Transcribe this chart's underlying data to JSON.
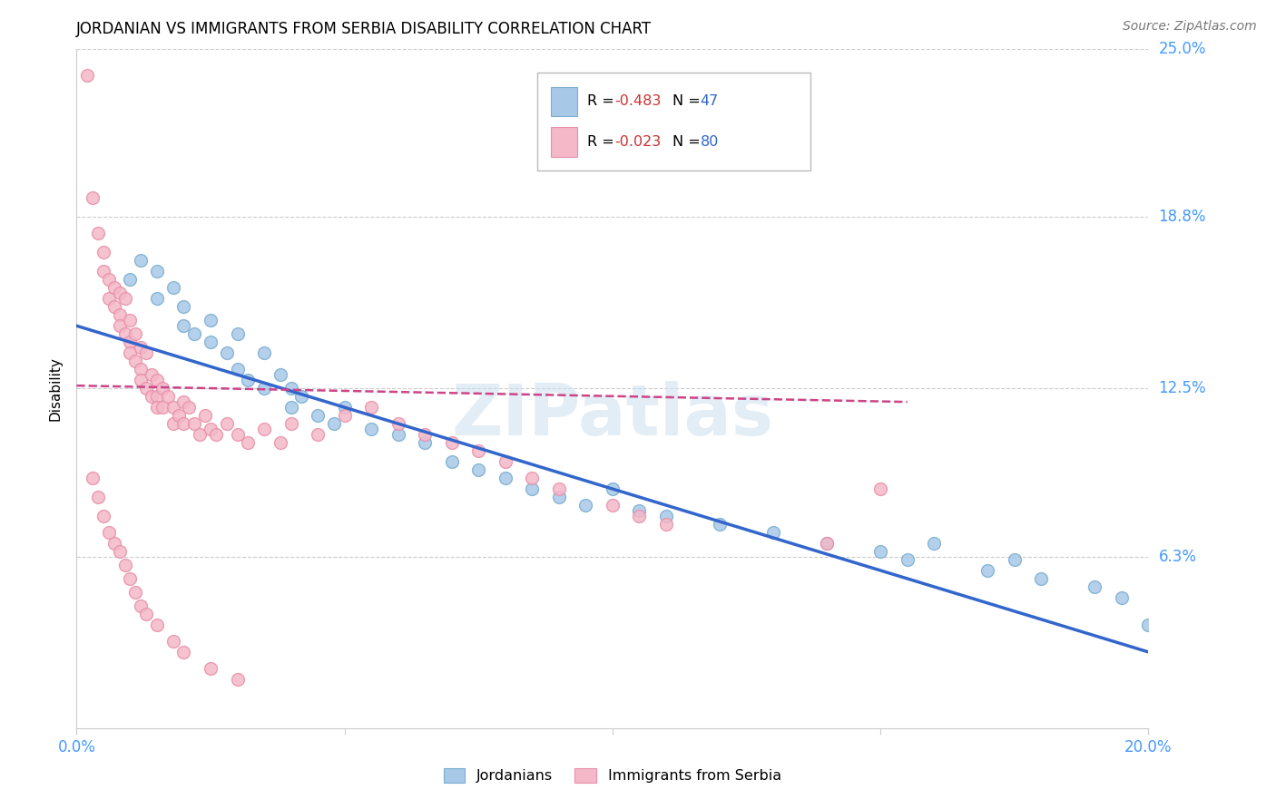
{
  "title": "JORDANIAN VS IMMIGRANTS FROM SERBIA DISABILITY CORRELATION CHART",
  "source": "Source: ZipAtlas.com",
  "ylabel_label": "Disability",
  "xlim": [
    0.0,
    0.2
  ],
  "ylim": [
    0.0,
    0.25
  ],
  "xtick_positions": [
    0.0,
    0.05,
    0.1,
    0.15,
    0.2
  ],
  "xtick_labels": [
    "0.0%",
    "",
    "",
    "",
    "20.0%"
  ],
  "ytick_values_right": [
    0.25,
    0.188,
    0.125,
    0.063
  ],
  "ytick_labels_right": [
    "25.0%",
    "18.8%",
    "12.5%",
    "6.3%"
  ],
  "blue_color": "#a8c8e8",
  "pink_color": "#f4b8c8",
  "blue_edge_color": "#7aaed0",
  "pink_edge_color": "#e890a8",
  "blue_line_color": "#3366cc",
  "pink_line_color": "#cc4488",
  "blue_trendline_x": [
    0.0,
    0.2
  ],
  "blue_trendline_y": [
    0.148,
    0.028
  ],
  "pink_trendline_x": [
    0.0,
    0.155
  ],
  "pink_trendline_y": [
    0.126,
    0.12
  ],
  "jordanians_x": [
    0.01,
    0.012,
    0.015,
    0.015,
    0.018,
    0.02,
    0.02,
    0.022,
    0.025,
    0.025,
    0.028,
    0.03,
    0.03,
    0.032,
    0.035,
    0.035,
    0.038,
    0.04,
    0.04,
    0.042,
    0.045,
    0.048,
    0.05,
    0.055,
    0.06,
    0.065,
    0.07,
    0.075,
    0.08,
    0.085,
    0.09,
    0.095,
    0.1,
    0.105,
    0.11,
    0.12,
    0.13,
    0.14,
    0.15,
    0.155,
    0.16,
    0.17,
    0.175,
    0.18,
    0.19,
    0.195,
    0.2
  ],
  "jordanians_y": [
    0.165,
    0.172,
    0.168,
    0.158,
    0.162,
    0.155,
    0.148,
    0.145,
    0.15,
    0.142,
    0.138,
    0.145,
    0.132,
    0.128,
    0.138,
    0.125,
    0.13,
    0.125,
    0.118,
    0.122,
    0.115,
    0.112,
    0.118,
    0.11,
    0.108,
    0.105,
    0.098,
    0.095,
    0.092,
    0.088,
    0.085,
    0.082,
    0.088,
    0.08,
    0.078,
    0.075,
    0.072,
    0.068,
    0.065,
    0.062,
    0.068,
    0.058,
    0.062,
    0.055,
    0.052,
    0.048,
    0.038
  ],
  "serbia_x": [
    0.002,
    0.003,
    0.004,
    0.005,
    0.005,
    0.006,
    0.006,
    0.007,
    0.007,
    0.008,
    0.008,
    0.008,
    0.009,
    0.009,
    0.01,
    0.01,
    0.01,
    0.011,
    0.011,
    0.012,
    0.012,
    0.012,
    0.013,
    0.013,
    0.014,
    0.014,
    0.015,
    0.015,
    0.015,
    0.016,
    0.016,
    0.017,
    0.018,
    0.018,
    0.019,
    0.02,
    0.02,
    0.021,
    0.022,
    0.023,
    0.024,
    0.025,
    0.026,
    0.028,
    0.03,
    0.032,
    0.035,
    0.038,
    0.04,
    0.045,
    0.05,
    0.055,
    0.06,
    0.065,
    0.07,
    0.075,
    0.08,
    0.085,
    0.09,
    0.1,
    0.105,
    0.11,
    0.14,
    0.15,
    0.003,
    0.004,
    0.005,
    0.006,
    0.007,
    0.008,
    0.009,
    0.01,
    0.011,
    0.012,
    0.013,
    0.015,
    0.018,
    0.02,
    0.025,
    0.03
  ],
  "serbia_y": [
    0.24,
    0.195,
    0.182,
    0.175,
    0.168,
    0.165,
    0.158,
    0.162,
    0.155,
    0.16,
    0.152,
    0.148,
    0.158,
    0.145,
    0.15,
    0.142,
    0.138,
    0.145,
    0.135,
    0.14,
    0.132,
    0.128,
    0.138,
    0.125,
    0.13,
    0.122,
    0.128,
    0.122,
    0.118,
    0.125,
    0.118,
    0.122,
    0.118,
    0.112,
    0.115,
    0.12,
    0.112,
    0.118,
    0.112,
    0.108,
    0.115,
    0.11,
    0.108,
    0.112,
    0.108,
    0.105,
    0.11,
    0.105,
    0.112,
    0.108,
    0.115,
    0.118,
    0.112,
    0.108,
    0.105,
    0.102,
    0.098,
    0.092,
    0.088,
    0.082,
    0.078,
    0.075,
    0.068,
    0.088,
    0.092,
    0.085,
    0.078,
    0.072,
    0.068,
    0.065,
    0.06,
    0.055,
    0.05,
    0.045,
    0.042,
    0.038,
    0.032,
    0.028,
    0.022,
    0.018
  ]
}
